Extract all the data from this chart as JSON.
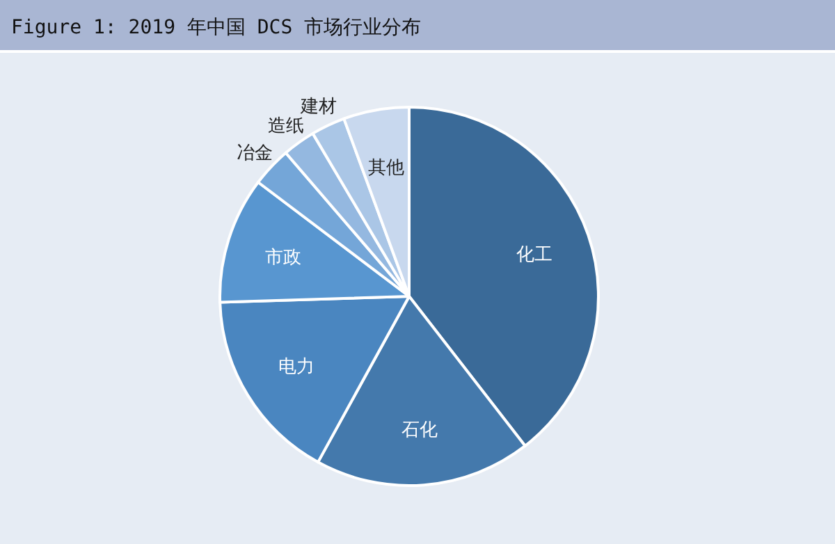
{
  "chart_data": {
    "type": "pie",
    "title": "Figure 1: 2019 年中国 DCS 市场行业分布",
    "categories": [
      "化工",
      "石化",
      "电力",
      "市政",
      "冶金",
      "造纸",
      "建材",
      "其他"
    ],
    "values": [
      39.5,
      18.5,
      16.5,
      10.8,
      3.4,
      2.8,
      2.9,
      5.6
    ],
    "colors": [
      "#3a6a98",
      "#4479ac",
      "#4a86c0",
      "#5896d0",
      "#74a6d8",
      "#94b8e0",
      "#aac6e6",
      "#c8d8ee"
    ]
  }
}
